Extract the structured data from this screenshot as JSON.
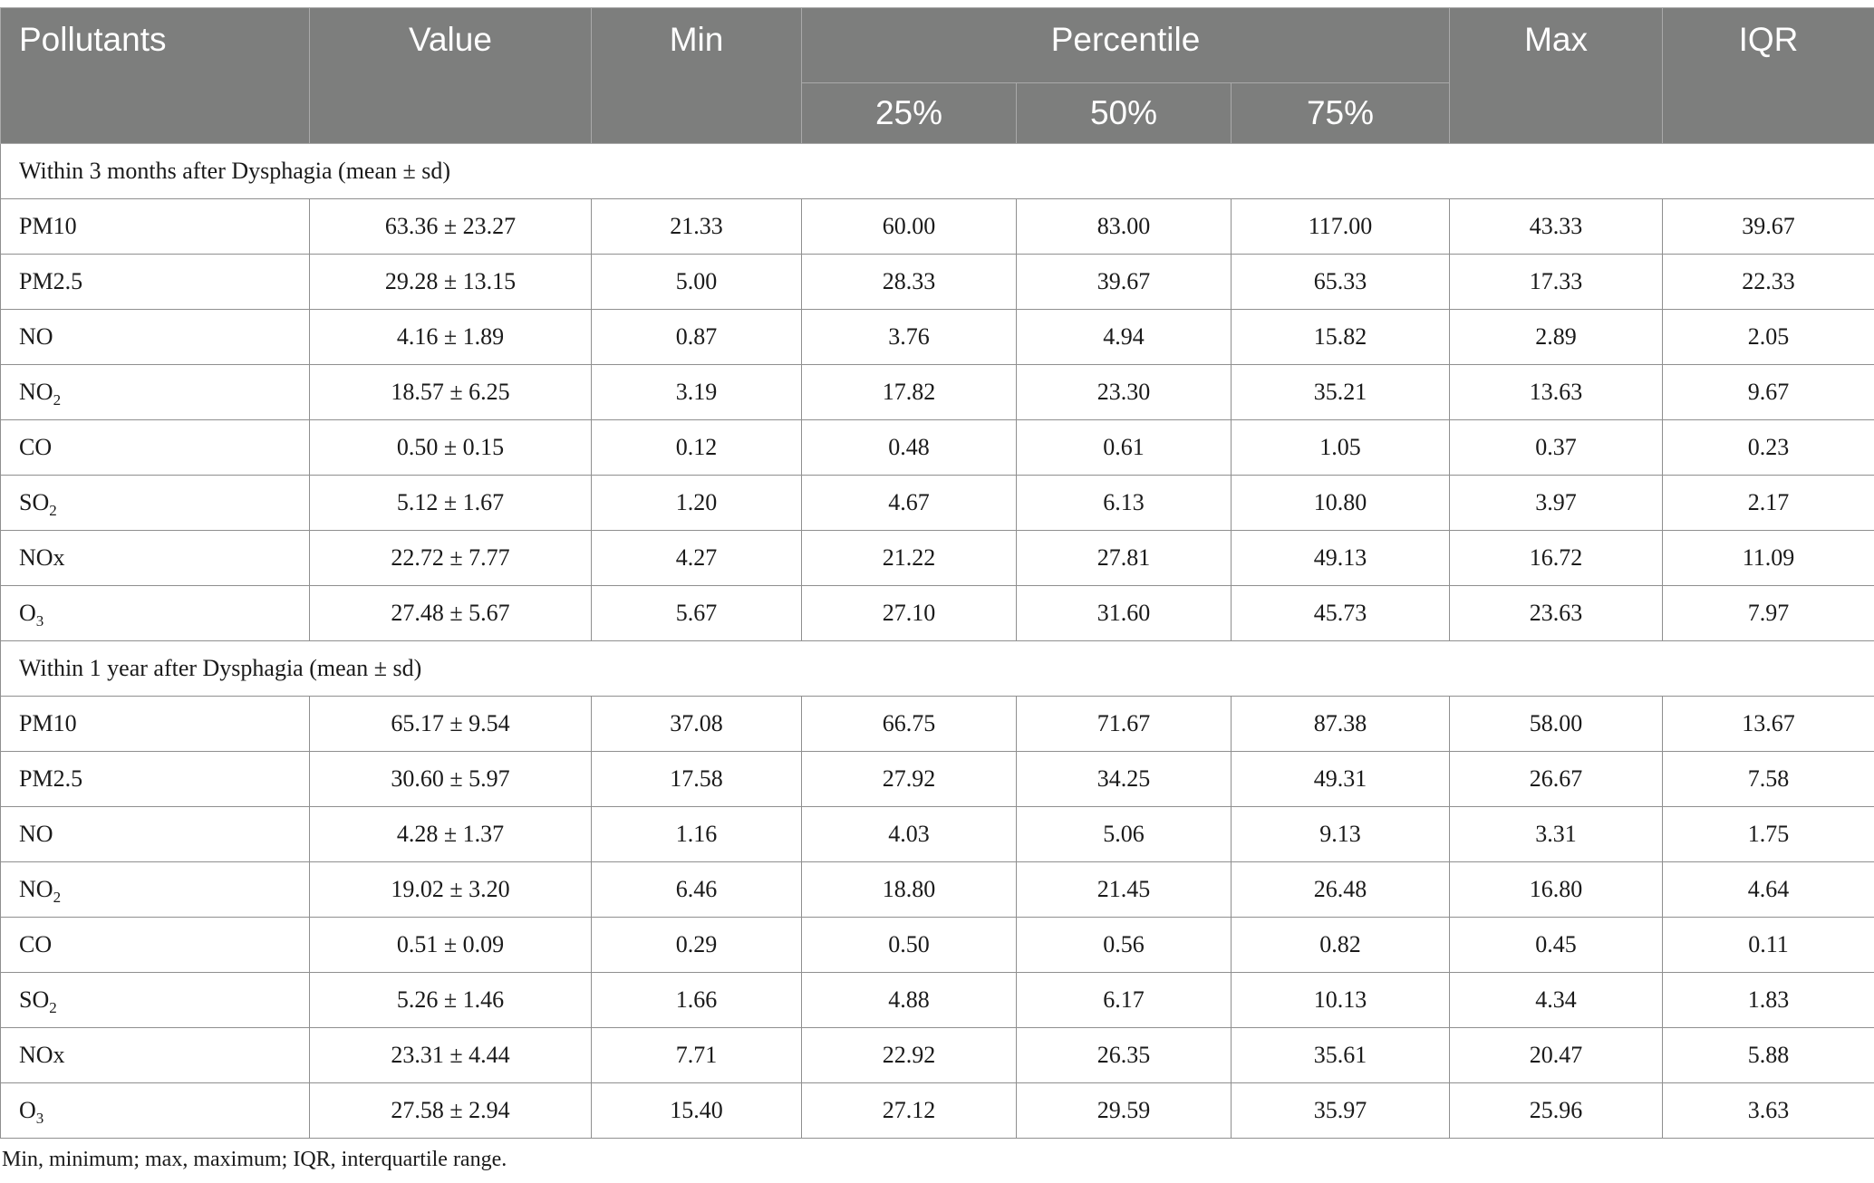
{
  "header": {
    "pollutants": "Pollutants",
    "value": "Value",
    "min": "Min",
    "percentile": "Percentile",
    "p25": "25%",
    "p50": "50%",
    "p75": "75%",
    "max": "Max",
    "iqr": "IQR"
  },
  "sections": [
    {
      "title": "Within 3 months after Dysphagia (mean ± sd)",
      "rows": [
        {
          "name": "PM10",
          "sub": "",
          "value": "63.36 ± 23.27",
          "min": "21.33",
          "p25": "60.00",
          "p50": "83.00",
          "p75": "117.00",
          "max": "43.33",
          "iqr": "39.67"
        },
        {
          "name": "PM2.5",
          "sub": "",
          "value": "29.28 ± 13.15",
          "min": "5.00",
          "p25": "28.33",
          "p50": "39.67",
          "p75": "65.33",
          "max": "17.33",
          "iqr": "22.33"
        },
        {
          "name": "NO",
          "sub": "",
          "value": "4.16 ± 1.89",
          "min": "0.87",
          "p25": "3.76",
          "p50": "4.94",
          "p75": "15.82",
          "max": "2.89",
          "iqr": "2.05"
        },
        {
          "name": "NO",
          "sub": "2",
          "value": "18.57 ± 6.25",
          "min": "3.19",
          "p25": "17.82",
          "p50": "23.30",
          "p75": "35.21",
          "max": "13.63",
          "iqr": "9.67"
        },
        {
          "name": "CO",
          "sub": "",
          "value": "0.50 ± 0.15",
          "min": "0.12",
          "p25": "0.48",
          "p50": "0.61",
          "p75": "1.05",
          "max": "0.37",
          "iqr": "0.23"
        },
        {
          "name": "SO",
          "sub": "2",
          "value": "5.12 ± 1.67",
          "min": "1.20",
          "p25": "4.67",
          "p50": "6.13",
          "p75": "10.80",
          "max": "3.97",
          "iqr": "2.17"
        },
        {
          "name": "NOx",
          "sub": "",
          "value": "22.72 ± 7.77",
          "min": "4.27",
          "p25": "21.22",
          "p50": "27.81",
          "p75": "49.13",
          "max": "16.72",
          "iqr": "11.09"
        },
        {
          "name": "O",
          "sub": "3",
          "value": "27.48 ± 5.67",
          "min": "5.67",
          "p25": "27.10",
          "p50": "31.60",
          "p75": "45.73",
          "max": "23.63",
          "iqr": "7.97"
        }
      ]
    },
    {
      "title": "Within 1 year after Dysphagia (mean ± sd)",
      "rows": [
        {
          "name": "PM10",
          "sub": "",
          "value": "65.17 ± 9.54",
          "min": "37.08",
          "p25": "66.75",
          "p50": "71.67",
          "p75": "87.38",
          "max": "58.00",
          "iqr": "13.67"
        },
        {
          "name": "PM2.5",
          "sub": "",
          "value": "30.60 ± 5.97",
          "min": "17.58",
          "p25": "27.92",
          "p50": "34.25",
          "p75": "49.31",
          "max": "26.67",
          "iqr": "7.58"
        },
        {
          "name": "NO",
          "sub": "",
          "value": "4.28 ± 1.37",
          "min": "1.16",
          "p25": "4.03",
          "p50": "5.06",
          "p75": "9.13",
          "max": "3.31",
          "iqr": "1.75"
        },
        {
          "name": "NO",
          "sub": "2",
          "value": "19.02 ± 3.20",
          "min": "6.46",
          "p25": "18.80",
          "p50": "21.45",
          "p75": "26.48",
          "max": "16.80",
          "iqr": "4.64"
        },
        {
          "name": "CO",
          "sub": "",
          "value": "0.51 ± 0.09",
          "min": "0.29",
          "p25": "0.50",
          "p50": "0.56",
          "p75": "0.82",
          "max": "0.45",
          "iqr": "0.11"
        },
        {
          "name": "SO",
          "sub": "2",
          "value": "5.26 ± 1.46",
          "min": "1.66",
          "p25": "4.88",
          "p50": "6.17",
          "p75": "10.13",
          "max": "4.34",
          "iqr": "1.83"
        },
        {
          "name": "NOx",
          "sub": "",
          "value": "23.31 ± 4.44",
          "min": "7.71",
          "p25": "22.92",
          "p50": "26.35",
          "p75": "35.61",
          "max": "20.47",
          "iqr": "5.88"
        },
        {
          "name": "O",
          "sub": "3",
          "value": "27.58 ± 2.94",
          "min": "15.40",
          "p25": "27.12",
          "p50": "29.59",
          "p75": "35.97",
          "max": "25.96",
          "iqr": "3.63"
        }
      ]
    }
  ],
  "footnote": "Min, minimum; max, maximum; IQR, interquartile range."
}
